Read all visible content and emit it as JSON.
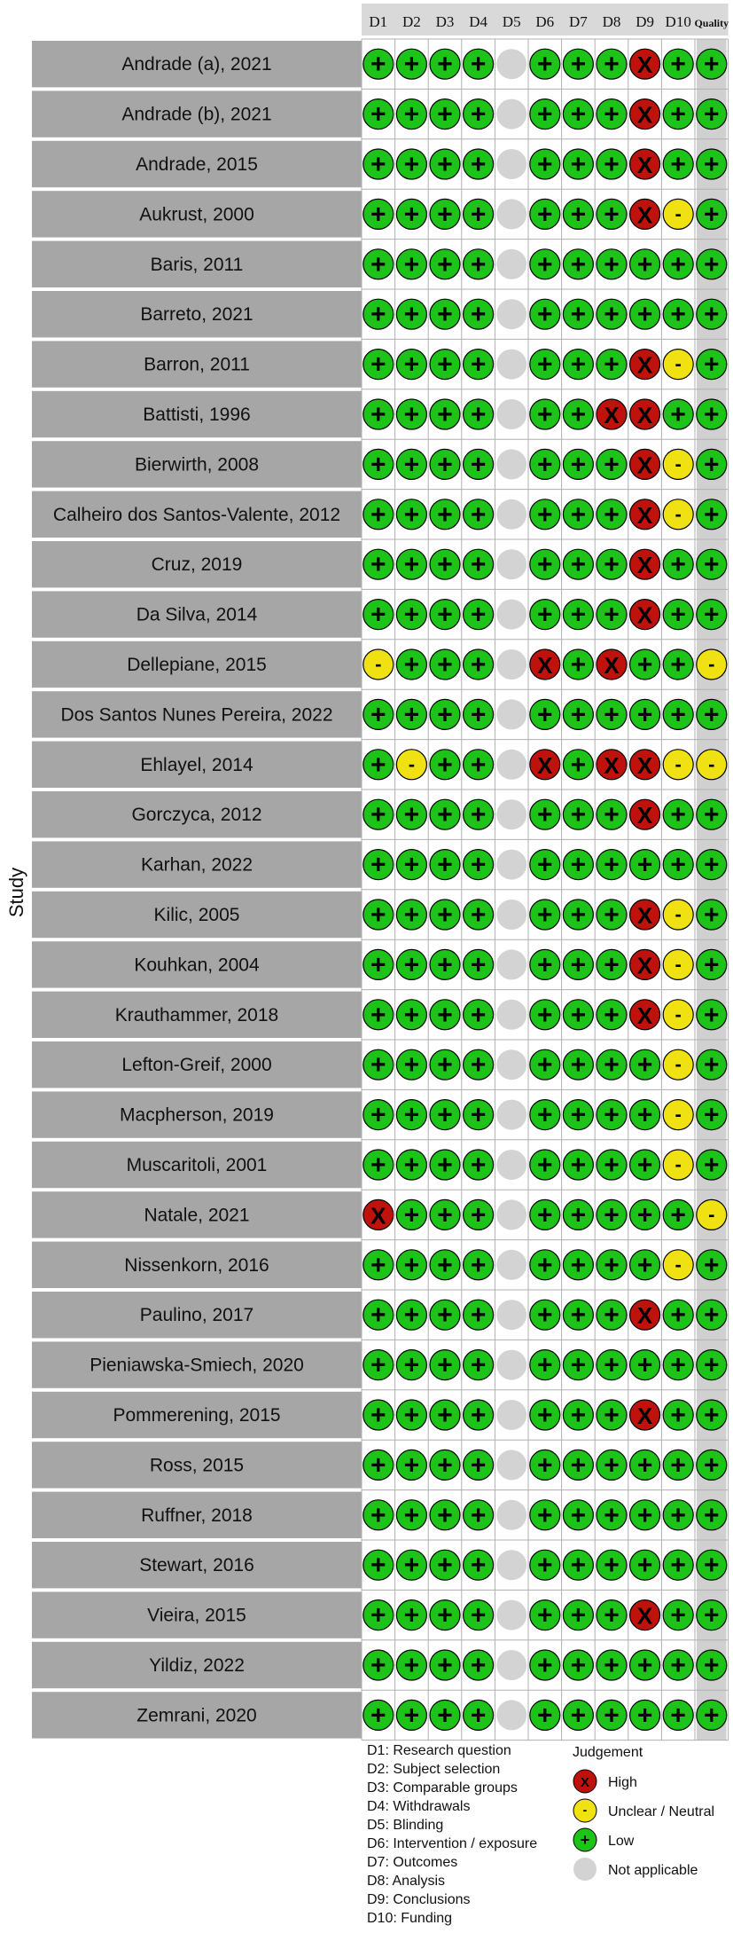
{
  "chart_data": {
    "type": "table",
    "axis_title": "Study",
    "columns": [
      "D1",
      "D2",
      "D3",
      "D4",
      "D5",
      "D6",
      "D7",
      "D8",
      "D9",
      "D10",
      "Quality"
    ],
    "studies": [
      {
        "name": "Andrade (a), 2021",
        "ratings": [
          "low",
          "low",
          "low",
          "low",
          "na",
          "low",
          "low",
          "low",
          "high",
          "low",
          "low"
        ]
      },
      {
        "name": "Andrade (b), 2021",
        "ratings": [
          "low",
          "low",
          "low",
          "low",
          "na",
          "low",
          "low",
          "low",
          "high",
          "low",
          "low"
        ]
      },
      {
        "name": "Andrade, 2015",
        "ratings": [
          "low",
          "low",
          "low",
          "low",
          "na",
          "low",
          "low",
          "low",
          "high",
          "low",
          "low"
        ]
      },
      {
        "name": "Aukrust, 2000",
        "ratings": [
          "low",
          "low",
          "low",
          "low",
          "na",
          "low",
          "low",
          "low",
          "high",
          "unclear",
          "low"
        ]
      },
      {
        "name": "Baris, 2011",
        "ratings": [
          "low",
          "low",
          "low",
          "low",
          "na",
          "low",
          "low",
          "low",
          "low",
          "low",
          "low"
        ]
      },
      {
        "name": "Barreto, 2021",
        "ratings": [
          "low",
          "low",
          "low",
          "low",
          "na",
          "low",
          "low",
          "low",
          "low",
          "low",
          "low"
        ]
      },
      {
        "name": "Barron, 2011",
        "ratings": [
          "low",
          "low",
          "low",
          "low",
          "na",
          "low",
          "low",
          "low",
          "high",
          "unclear",
          "low"
        ]
      },
      {
        "name": "Battisti, 1996",
        "ratings": [
          "low",
          "low",
          "low",
          "low",
          "na",
          "low",
          "low",
          "high",
          "high",
          "low",
          "low"
        ]
      },
      {
        "name": "Bierwirth, 2008",
        "ratings": [
          "low",
          "low",
          "low",
          "low",
          "na",
          "low",
          "low",
          "low",
          "high",
          "unclear",
          "low"
        ]
      },
      {
        "name": "Calheiro dos Santos-Valente, 2012",
        "ratings": [
          "low",
          "low",
          "low",
          "low",
          "na",
          "low",
          "low",
          "low",
          "high",
          "unclear",
          "low"
        ]
      },
      {
        "name": "Cruz, 2019",
        "ratings": [
          "low",
          "low",
          "low",
          "low",
          "na",
          "low",
          "low",
          "low",
          "high",
          "low",
          "low"
        ]
      },
      {
        "name": "Da Silva, 2014",
        "ratings": [
          "low",
          "low",
          "low",
          "low",
          "na",
          "low",
          "low",
          "low",
          "high",
          "low",
          "low"
        ]
      },
      {
        "name": "Dellepiane, 2015",
        "ratings": [
          "unclear",
          "low",
          "low",
          "low",
          "na",
          "high",
          "low",
          "high",
          "low",
          "low",
          "unclear"
        ]
      },
      {
        "name": "Dos Santos Nunes Pereira, 2022",
        "ratings": [
          "low",
          "low",
          "low",
          "low",
          "na",
          "low",
          "low",
          "low",
          "low",
          "low",
          "low"
        ]
      },
      {
        "name": "Ehlayel, 2014",
        "ratings": [
          "low",
          "unclear",
          "low",
          "low",
          "na",
          "high",
          "low",
          "high",
          "high",
          "unclear",
          "unclear"
        ]
      },
      {
        "name": "Gorczyca, 2012",
        "ratings": [
          "low",
          "low",
          "low",
          "low",
          "na",
          "low",
          "low",
          "low",
          "high",
          "low",
          "low"
        ]
      },
      {
        "name": "Karhan, 2022",
        "ratings": [
          "low",
          "low",
          "low",
          "low",
          "na",
          "low",
          "low",
          "low",
          "low",
          "low",
          "low"
        ]
      },
      {
        "name": "Kilic, 2005",
        "ratings": [
          "low",
          "low",
          "low",
          "low",
          "na",
          "low",
          "low",
          "low",
          "high",
          "unclear",
          "low"
        ]
      },
      {
        "name": "Kouhkan, 2004",
        "ratings": [
          "low",
          "low",
          "low",
          "low",
          "na",
          "low",
          "low",
          "low",
          "high",
          "unclear",
          "low"
        ]
      },
      {
        "name": "Krauthammer, 2018",
        "ratings": [
          "low",
          "low",
          "low",
          "low",
          "na",
          "low",
          "low",
          "low",
          "high",
          "unclear",
          "low"
        ]
      },
      {
        "name": "Lefton-Greif, 2000",
        "ratings": [
          "low",
          "low",
          "low",
          "low",
          "na",
          "low",
          "low",
          "low",
          "low",
          "unclear",
          "low"
        ]
      },
      {
        "name": "Macpherson, 2019",
        "ratings": [
          "low",
          "low",
          "low",
          "low",
          "na",
          "low",
          "low",
          "low",
          "low",
          "unclear",
          "low"
        ]
      },
      {
        "name": "Muscaritoli, 2001",
        "ratings": [
          "low",
          "low",
          "low",
          "low",
          "na",
          "low",
          "low",
          "low",
          "low",
          "unclear",
          "low"
        ]
      },
      {
        "name": "Natale, 2021",
        "ratings": [
          "high",
          "low",
          "low",
          "low",
          "na",
          "low",
          "low",
          "low",
          "low",
          "low",
          "unclear"
        ]
      },
      {
        "name": "Nissenkorn, 2016",
        "ratings": [
          "low",
          "low",
          "low",
          "low",
          "na",
          "low",
          "low",
          "low",
          "low",
          "unclear",
          "low"
        ]
      },
      {
        "name": "Paulino, 2017",
        "ratings": [
          "low",
          "low",
          "low",
          "low",
          "na",
          "low",
          "low",
          "low",
          "high",
          "low",
          "low"
        ]
      },
      {
        "name": "Pieniawska-Smiech, 2020",
        "ratings": [
          "low",
          "low",
          "low",
          "low",
          "na",
          "low",
          "low",
          "low",
          "low",
          "low",
          "low"
        ]
      },
      {
        "name": "Pommerening, 2015",
        "ratings": [
          "low",
          "low",
          "low",
          "low",
          "na",
          "low",
          "low",
          "low",
          "high",
          "low",
          "low"
        ]
      },
      {
        "name": "Ross, 2015",
        "ratings": [
          "low",
          "low",
          "low",
          "low",
          "na",
          "low",
          "low",
          "low",
          "low",
          "low",
          "low"
        ]
      },
      {
        "name": "Ruffner, 2018",
        "ratings": [
          "low",
          "low",
          "low",
          "low",
          "na",
          "low",
          "low",
          "low",
          "low",
          "low",
          "low"
        ]
      },
      {
        "name": "Stewart, 2016",
        "ratings": [
          "low",
          "low",
          "low",
          "low",
          "na",
          "low",
          "low",
          "low",
          "low",
          "low",
          "low"
        ]
      },
      {
        "name": "Vieira, 2015",
        "ratings": [
          "low",
          "low",
          "low",
          "low",
          "na",
          "low",
          "low",
          "low",
          "high",
          "low",
          "low"
        ]
      },
      {
        "name": "Yildiz, 2022",
        "ratings": [
          "low",
          "low",
          "low",
          "low",
          "na",
          "low",
          "low",
          "low",
          "low",
          "low",
          "low"
        ]
      },
      {
        "name": "Zemrani, 2020",
        "ratings": [
          "low",
          "low",
          "low",
          "low",
          "na",
          "low",
          "low",
          "low",
          "low",
          "low",
          "low"
        ]
      }
    ],
    "domain_legend": [
      "D1: Research question",
      "D2: Subject selection",
      "D3: Comparable groups",
      "D4: Withdrawals",
      "D5: Blinding",
      "D6: Intervention / exposure",
      "D7: Outcomes",
      "D8: Analysis",
      "D9: Conclusions",
      "D10: Funding"
    ],
    "judgement_legend": {
      "title": "Judgement",
      "items": [
        {
          "key": "high",
          "label": "High",
          "symbol": "X",
          "color": "#c0120c"
        },
        {
          "key": "unclear",
          "label": "Unclear / Neutral",
          "symbol": "-",
          "color": "#f0e212"
        },
        {
          "key": "low",
          "label": "Low",
          "symbol": "+",
          "color": "#1ec31a"
        },
        {
          "key": "na",
          "label": "Not applicable",
          "symbol": "",
          "color": "#d3d3d3"
        }
      ]
    },
    "colors": {
      "row_band": "#a6a6a6",
      "header_band": "#d9d9d9",
      "quality_band": "#d0d0d0",
      "grid_line": "#b0b0b0"
    }
  }
}
